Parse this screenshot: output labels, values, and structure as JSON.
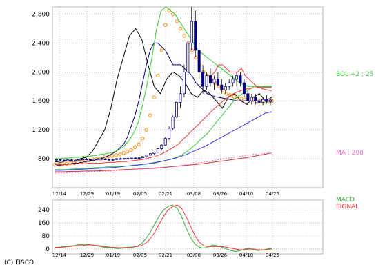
{
  "copyright": "(C) FISCO",
  "chart_data": [
    {
      "type": "line",
      "ylim": [
        400,
        2900
      ],
      "yticks": [
        "2,800",
        "2,400",
        "2,000",
        "1,600",
        "1,200",
        "800"
      ],
      "yticks_values": [
        2800,
        2400,
        2000,
        1600,
        1200,
        800
      ],
      "xticks": [
        "12/14",
        "12/29",
        "01/19",
        "02/05",
        "02/21",
        "03/08",
        "03/26",
        "04/10",
        "04/25"
      ],
      "grid": true,
      "legend": [
        {
          "text": "BOL +2 : 25",
          "color": "#33cc33"
        },
        {
          "text": "MA : 200",
          "color": "#ff66cc"
        }
      ],
      "overlapped_labels_note": "",
      "candles": [
        [
          780,
          810,
          760,
          790
        ],
        [
          790,
          800,
          770,
          780
        ],
        [
          780,
          790,
          760,
          770
        ],
        [
          770,
          790,
          760,
          785
        ],
        [
          785,
          800,
          770,
          775
        ],
        [
          775,
          790,
          760,
          780
        ],
        [
          780,
          800,
          770,
          790
        ],
        [
          790,
          805,
          780,
          795
        ],
        [
          795,
          810,
          780,
          790
        ],
        [
          790,
          800,
          770,
          780
        ],
        [
          780,
          800,
          770,
          795
        ],
        [
          795,
          810,
          785,
          800
        ],
        [
          800,
          815,
          790,
          795
        ],
        [
          795,
          810,
          780,
          790
        ],
        [
          790,
          800,
          770,
          780
        ],
        [
          780,
          795,
          770,
          790
        ],
        [
          790,
          810,
          780,
          800
        ],
        [
          800,
          815,
          790,
          795
        ],
        [
          795,
          810,
          785,
          805
        ],
        [
          805,
          820,
          790,
          800
        ],
        [
          800,
          815,
          790,
          810
        ],
        [
          810,
          825,
          800,
          805
        ],
        [
          805,
          820,
          795,
          815
        ],
        [
          815,
          840,
          805,
          830
        ],
        [
          830,
          860,
          820,
          850
        ],
        [
          850,
          880,
          840,
          870
        ],
        [
          870,
          900,
          860,
          890
        ],
        [
          890,
          950,
          880,
          940
        ],
        [
          940,
          1000,
          920,
          990
        ],
        [
          990,
          1100,
          980,
          1080
        ],
        [
          1080,
          1250,
          1060,
          1220
        ],
        [
          1220,
          1400,
          1200,
          1380
        ],
        [
          1380,
          1600,
          1360,
          1580
        ],
        [
          1580,
          1800,
          1500,
          1700
        ],
        [
          1700,
          2100,
          1650,
          2000
        ],
        [
          2000,
          2450,
          1950,
          2400
        ],
        [
          2400,
          2900,
          2300,
          2700
        ],
        [
          2700,
          2850,
          2200,
          2300
        ],
        [
          2300,
          2400,
          1900,
          2000
        ],
        [
          2000,
          2100,
          1700,
          1800
        ],
        [
          1800,
          2000,
          1750,
          1950
        ],
        [
          1950,
          2050,
          1800,
          1850
        ],
        [
          1850,
          1950,
          1750,
          1900
        ],
        [
          1900,
          2000,
          1800,
          1820
        ],
        [
          1820,
          1900,
          1700,
          1750
        ],
        [
          1750,
          1850,
          1700,
          1800
        ],
        [
          1800,
          1900,
          1750,
          1850
        ],
        [
          1850,
          1950,
          1800,
          1900
        ],
        [
          1900,
          2000,
          1800,
          1950
        ],
        [
          1950,
          2000,
          1800,
          1850
        ],
        [
          1850,
          1900,
          1650,
          1700
        ],
        [
          1700,
          1750,
          1550,
          1600
        ],
        [
          1600,
          1700,
          1550,
          1650
        ],
        [
          1650,
          1700,
          1550,
          1600
        ],
        [
          1600,
          1650,
          1520,
          1580
        ],
        [
          1580,
          1650,
          1540,
          1620
        ],
        [
          1620,
          1680,
          1560,
          1590
        ],
        [
          1590,
          1640,
          1540,
          1610
        ]
      ],
      "series": [
        {
          "color": "#000000",
          "values": [
            760,
            750,
            780,
            760,
            800,
            820,
            900,
            1050,
            1200,
            1500,
            1900,
            2200,
            2500,
            2600,
            2450,
            2100,
            1800,
            1700,
            1900,
            2000,
            1950,
            1850,
            1700,
            1650,
            1750,
            1700,
            1600,
            1500,
            1650,
            1700,
            1600,
            1550,
            1650,
            1700,
            1600,
            1650
          ],
          "start_index": 0,
          "step": 1
        },
        {
          "color": "#ff8800",
          "style": "circles",
          "values": [
            720,
            720,
            730,
            730,
            740,
            740,
            750,
            760,
            770,
            780,
            790,
            800,
            800,
            820,
            830,
            840,
            850,
            860,
            880,
            900,
            920,
            960,
            1000,
            1080,
            1200,
            1400,
            1650,
            1950,
            2300,
            2650,
            2850,
            2800,
            2700,
            2600,
            2500,
            2400,
            2300,
            2200,
            2100,
            2000,
            1950,
            1900,
            1850,
            1800,
            1750,
            1700,
            1680,
            1660,
            1640,
            1630,
            1620,
            1620,
            1610,
            1600,
            1600,
            1600,
            1600,
            1600
          ],
          "start_index": 0,
          "step": 1
        },
        {
          "color": "#000080",
          "values": [
            700,
            710,
            720,
            720,
            730,
            740,
            740,
            750,
            760,
            770,
            780,
            790,
            800,
            820,
            840,
            870,
            900,
            950,
            1000,
            1100,
            1250,
            1400,
            1600,
            1850,
            2100,
            2300,
            2400,
            2400,
            2350,
            2300,
            2200,
            2100,
            2100,
            2100,
            2050,
            2000,
            1950,
            1850,
            1800,
            1750,
            1700,
            1680,
            1660,
            1650,
            1640,
            1630,
            1620,
            1610,
            1600,
            1600,
            1600,
            1600,
            1600,
            1600,
            1600,
            1600,
            1600,
            1600
          ],
          "start_index": 0,
          "step": 1
        },
        {
          "color": "#33cc33",
          "values": [
            800,
            800,
            810,
            810,
            820,
            820,
            830,
            830,
            840,
            850,
            860,
            870,
            880,
            900,
            930,
            980,
            1050,
            1150,
            1300,
            1550,
            1850,
            2200,
            2600,
            2850,
            2900,
            2850,
            2800,
            2700,
            2600,
            2500,
            2400,
            2300,
            2250,
            2200,
            2150,
            2100,
            2050,
            2000,
            1950,
            1900,
            1850,
            1820,
            1800,
            1800,
            1800,
            1800,
            1800,
            1800
          ],
          "start_index": 0,
          "step": 1
        },
        {
          "color": "#33cc33",
          "values": [
            650,
            650,
            650,
            660,
            660,
            670,
            670,
            680,
            680,
            690,
            690,
            700,
            700,
            700,
            710,
            720,
            730,
            740,
            760,
            780,
            800,
            830,
            870,
            930,
            1000,
            1080,
            1150,
            1250,
            1350,
            1450,
            1550,
            1650,
            1700,
            1750,
            1800,
            1800,
            1800,
            1800
          ],
          "start_index": 0,
          "step": 1
        },
        {
          "color": "#ff3333",
          "values": [
            720,
            720,
            720,
            730,
            730,
            730,
            740,
            740,
            740,
            750,
            750,
            760,
            760,
            770,
            780,
            790,
            810,
            830,
            860,
            900,
            950,
            1000,
            1080,
            1160,
            1240,
            1320,
            1400,
            1480,
            1550,
            1620,
            1680,
            1720,
            1750,
            1770,
            1780,
            1790,
            1790,
            1790
          ],
          "start_index": 0,
          "step": 1
        },
        {
          "color": "#3333ff",
          "values": [
            640,
            640,
            645,
            650,
            655,
            660,
            665,
            670,
            675,
            680,
            690,
            700,
            710,
            720,
            730,
            745,
            760,
            780,
            800,
            830,
            860,
            900,
            940,
            980,
            1030,
            1080,
            1130,
            1180,
            1230,
            1280,
            1330,
            1380,
            1430,
            1450
          ],
          "start_index": 0,
          "step": 1
        },
        {
          "color": "#cc3333",
          "values": [
            620,
            620,
            625,
            625,
            630,
            630,
            635,
            640,
            645,
            650,
            655,
            660,
            665,
            670,
            680,
            690,
            700,
            710,
            720,
            730,
            745,
            760,
            775,
            790,
            805,
            820,
            840,
            860,
            880
          ],
          "start_index": 0,
          "step": 1
        },
        {
          "color": "#ff66cc",
          "style": "dotted",
          "values": [
            600,
            605,
            610,
            615,
            620,
            625,
            630,
            640,
            650,
            660,
            670,
            680,
            690,
            700,
            720,
            740,
            760,
            780,
            800,
            820,
            840,
            860,
            870,
            880
          ],
          "start_index": 0,
          "step": 1
        },
        {
          "color": "#ff3333",
          "values": [
            null,
            null,
            null,
            null,
            null,
            null,
            null,
            null,
            null,
            null,
            null,
            null,
            null,
            null,
            null,
            null,
            null,
            null,
            null,
            null,
            null,
            null,
            null,
            null,
            null,
            null,
            null,
            null,
            null,
            null,
            null,
            null,
            null,
            null,
            null,
            null,
            null,
            null,
            null,
            null,
            null,
            1950,
            2000,
            2100,
            2100,
            2050,
            2000,
            2000,
            2000,
            2050,
            1950,
            1900,
            1850,
            1800,
            1780,
            1760,
            1750,
            1740
          ],
          "start_index": 0,
          "step": 1
        }
      ]
    },
    {
      "type": "line",
      "ylim": [
        -30,
        300
      ],
      "yticks": [
        "240",
        "160",
        "80",
        "0"
      ],
      "yticks_values": [
        240,
        160,
        80,
        0
      ],
      "xticks": [
        "12/14",
        "12/29",
        "01/19",
        "02/05",
        "02/21",
        "03/08",
        "03/26",
        "04/10",
        "04/25"
      ],
      "grid": true,
      "legend": [
        {
          "text": "MACD",
          "color": "#33aa33"
        },
        {
          "text": "SIGNAL",
          "color": "#ff3333"
        }
      ],
      "series": [
        {
          "name": "MACD",
          "color": "#33aa33",
          "values": [
            10,
            12,
            15,
            18,
            20,
            25,
            28,
            30,
            25,
            20,
            15,
            10,
            8,
            5,
            3,
            5,
            8,
            10,
            15,
            30,
            60,
            100,
            150,
            200,
            240,
            260,
            270,
            250,
            200,
            130,
            70,
            30,
            10,
            5,
            15,
            25,
            20,
            10,
            0,
            -10,
            -15,
            -10,
            0,
            5,
            -5,
            -10,
            -5,
            0,
            5
          ],
          "start_index": 0,
          "step": 1
        },
        {
          "name": "SIGNAL",
          "color": "#ff3333",
          "values": [
            8,
            10,
            12,
            15,
            18,
            20,
            22,
            25,
            25,
            22,
            20,
            15,
            12,
            10,
            8,
            8,
            10,
            12,
            15,
            20,
            35,
            60,
            100,
            150,
            200,
            240,
            260,
            270,
            250,
            200,
            140,
            80,
            40,
            20,
            15,
            15,
            15,
            15,
            10,
            5,
            0,
            -5,
            -5,
            0,
            0,
            -5,
            -5,
            -5,
            0
          ],
          "start_index": 0,
          "step": 1
        }
      ]
    }
  ]
}
